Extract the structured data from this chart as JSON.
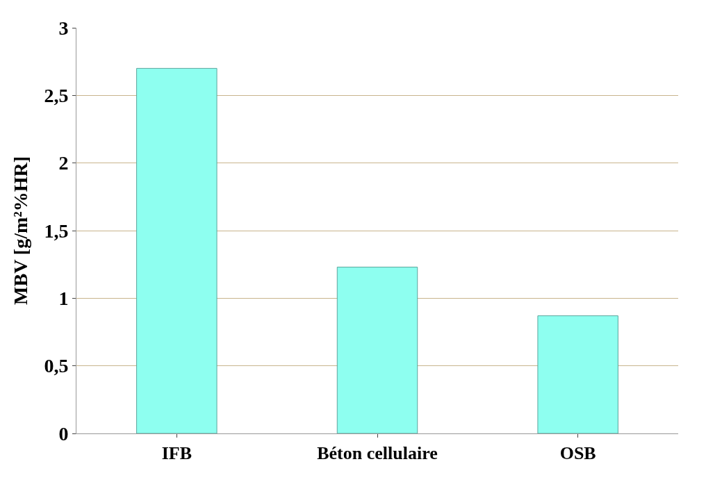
{
  "chart_data": {
    "type": "bar",
    "ylabel": "MBV [g/m²%HR]",
    "categories": [
      "IFB",
      "Béton cellulaire",
      "OSB"
    ],
    "values": [
      2.7,
      1.23,
      0.87
    ],
    "color": "#8efff0",
    "ylim": [
      0,
      3
    ],
    "yticks": [
      {
        "value": 0,
        "label": "0"
      },
      {
        "value": 0.5,
        "label": "0,5"
      },
      {
        "value": 1,
        "label": "1"
      },
      {
        "value": 1.5,
        "label": "1,5"
      },
      {
        "value": 2,
        "label": "2"
      },
      {
        "value": 2.5,
        "label": "2,5"
      },
      {
        "value": 3,
        "label": "3"
      }
    ],
    "grid": "y"
  }
}
